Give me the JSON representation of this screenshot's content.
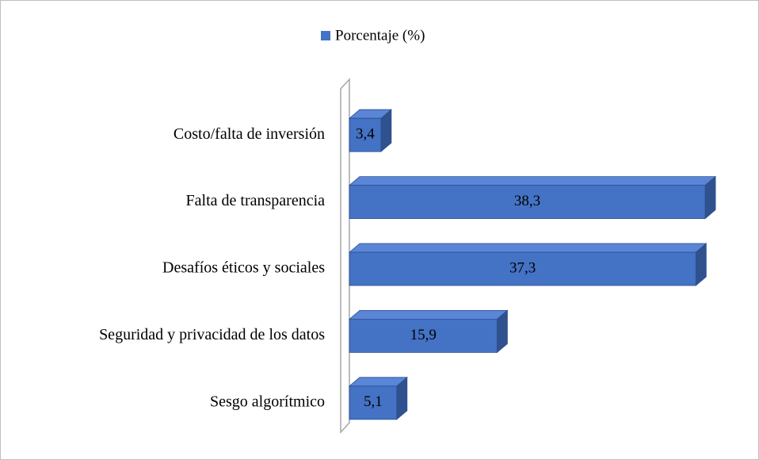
{
  "chart_data": {
    "type": "bar3d_horizontal",
    "legend": "Porcentaje (%)",
    "categories": [
      "Costo/falta de inversión",
      "Falta de transparencia",
      "Desafíos éticos y sociales",
      "Seguridad y privacidad de los datos",
      "Sesgo algorítmico"
    ],
    "values": [
      3.4,
      38.3,
      37.3,
      15.9,
      5.1
    ],
    "value_labels": [
      "3,4",
      "38,3",
      "37,3",
      "15,9",
      "5,1"
    ],
    "color": "#4472c4",
    "xlim": [
      0,
      40
    ],
    "legend_position": "top"
  }
}
